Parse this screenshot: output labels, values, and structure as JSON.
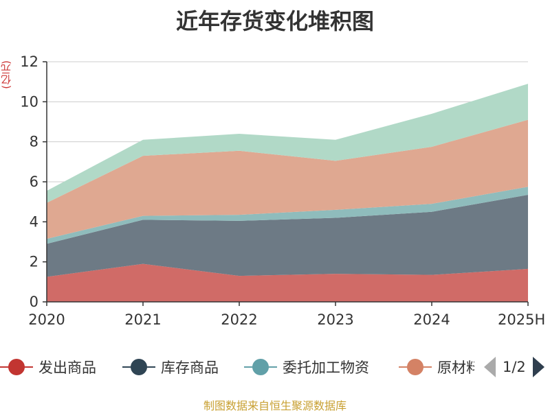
{
  "chart_data": {
    "type": "area",
    "stacked": true,
    "title": "近年存货变化堆积图",
    "ylabel": "(亿元)",
    "categories": [
      "2020",
      "2021",
      "2022",
      "2023",
      "2024",
      "2025H"
    ],
    "ylim": [
      0,
      12
    ],
    "yticks": [
      0,
      2,
      4,
      6,
      8,
      10,
      12
    ],
    "grid": true,
    "series": [
      {
        "name": "发出商品",
        "color": "#d06b67",
        "values": [
          1.25,
          1.9,
          1.3,
          1.4,
          1.35,
          1.65
        ]
      },
      {
        "name": "库存商品",
        "color": "#6d7a85",
        "values": [
          1.65,
          2.2,
          2.75,
          2.8,
          3.15,
          3.7
        ]
      },
      {
        "name": "委托加工物资",
        "color": "#8fbcbc",
        "values": [
          0.25,
          0.2,
          0.3,
          0.4,
          0.4,
          0.4
        ]
      },
      {
        "name": "原材料",
        "color": "#dfa891",
        "values": [
          1.8,
          3.0,
          3.2,
          2.45,
          2.85,
          3.35
        ]
      },
      {
        "name": "",
        "color": "#b1d9c7",
        "values": [
          0.6,
          0.8,
          0.85,
          1.05,
          1.65,
          1.8
        ]
      }
    ]
  },
  "legend": {
    "items": [
      {
        "label": "发出商品",
        "color": "#c23531"
      },
      {
        "label": "库存商品",
        "color": "#2f4554"
      },
      {
        "label": "委托加工物资",
        "color": "#61a0a8"
      },
      {
        "label": "原材料",
        "color": "#d48265"
      }
    ],
    "page_text": "1/2"
  },
  "footer": {
    "source": "制图数据来自恒生聚源数据库"
  }
}
